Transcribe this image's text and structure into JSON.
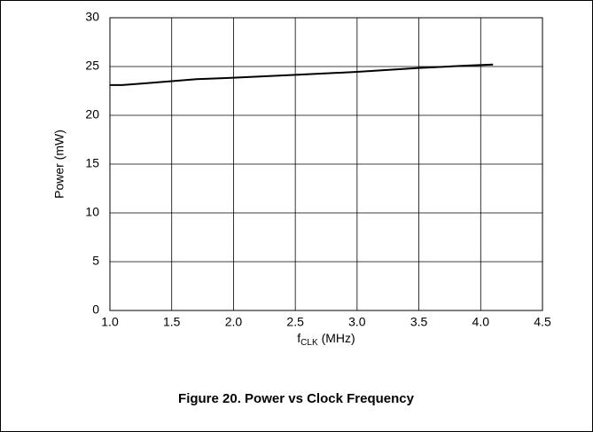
{
  "chart_data": {
    "type": "line",
    "title": "Figure 20. Power vs Clock Frequency",
    "ylabel": "Power (mW)",
    "xlabel": {
      "main": "f",
      "subscript": "CLK",
      "suffix": "(MHz)"
    },
    "x": [
      1.0,
      1.1,
      1.3,
      1.5,
      1.7,
      2.0,
      2.5,
      3.0,
      3.5,
      3.9,
      4.1
    ],
    "series": [
      {
        "color": "#000000",
        "values": [
          23.1,
          23.1,
          23.3,
          23.5,
          23.7,
          23.85,
          24.15,
          24.45,
          24.85,
          25.1,
          25.2
        ]
      }
    ],
    "xlim": [
      1.0,
      4.5
    ],
    "xticks": [
      {
        "value": 1,
        "label": "1.0"
      },
      1.5,
      {
        "value": 2,
        "label": "2.0"
      },
      2.5,
      {
        "value": 3,
        "label": "3.0"
      },
      3.5,
      {
        "value": 4,
        "label": "4.0"
      },
      4.5
    ],
    "ylim": [
      0,
      30
    ],
    "yticks": [
      0,
      5,
      10,
      15,
      20,
      25,
      30
    ],
    "grid": true
  }
}
